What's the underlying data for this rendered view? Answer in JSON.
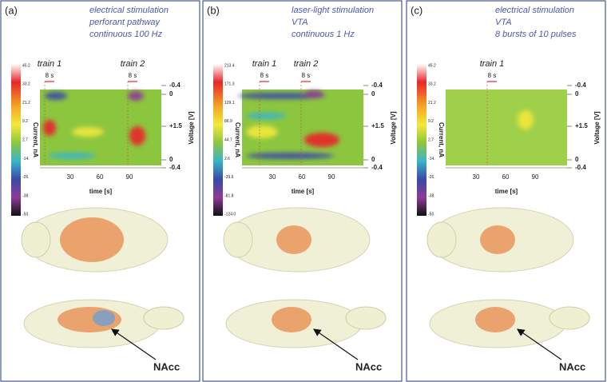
{
  "panels": [
    {
      "label": "(a)",
      "caption": [
        "electrical stimulation",
        "perforant pathway",
        "continuous 100 Hz"
      ],
      "trains": [
        {
          "name": "train 1",
          "duration": "8 s"
        },
        {
          "name": "train 2",
          "duration": "8 s"
        }
      ],
      "colorbar": {
        "label": "Current, nA",
        "ticks": [
          "45.2",
          "33.2",
          "21.2",
          "9.2",
          "2.7",
          "-14.",
          "-26.",
          "-38.",
          "-50."
        ]
      },
      "voltage": {
        "label": "Voltage [V]",
        "ticks": [
          "-0.4",
          "0",
          "+1.5",
          "0",
          "-0.4"
        ]
      },
      "time": {
        "label": "time [s]",
        "ticks": [
          "30",
          "60",
          "90"
        ]
      },
      "callout": "NAcc"
    },
    {
      "label": "(b)",
      "caption": [
        "laser-light stimulation",
        "VTA",
        "continuous 1 Hz"
      ],
      "trains": [
        {
          "name": "train 1",
          "duration": "8 s"
        },
        {
          "name": "train 2",
          "duration": "8 s"
        }
      ],
      "colorbar": {
        "label": "Current, nA",
        "ticks": [
          "213.4",
          "171.3",
          "129.1",
          "86.9",
          "44.7",
          "2.6",
          "-39.6",
          "-81.8",
          "-124.0"
        ]
      },
      "voltage": {
        "label": "Voltage [V]",
        "ticks": [
          "-0.4",
          "0",
          "+1.5",
          "0",
          "-0.4"
        ]
      },
      "time": {
        "label": "time [s]",
        "ticks": [
          "30",
          "60",
          "90"
        ]
      },
      "callout": "NAcc"
    },
    {
      "label": "(c)",
      "caption": [
        "electrical stimulation",
        "VTA",
        "8 bursts of 10 pulses"
      ],
      "trains": [
        {
          "name": "train 1",
          "duration": "8 s"
        }
      ],
      "colorbar": {
        "label": "Current, nA",
        "ticks": [
          "45.2",
          "33.2",
          "21.2",
          "9.2",
          "2.7",
          "-14.",
          "-26.",
          "-38.",
          "-50."
        ]
      },
      "voltage": {
        "label": "Voltage [V]",
        "ticks": [
          "-0.4",
          "0",
          "+1.5",
          "0",
          "-0.4"
        ]
      },
      "time": {
        "label": "time [s]",
        "ticks": [
          "30",
          "60",
          "90"
        ]
      },
      "callout": "NAcc"
    }
  ]
}
